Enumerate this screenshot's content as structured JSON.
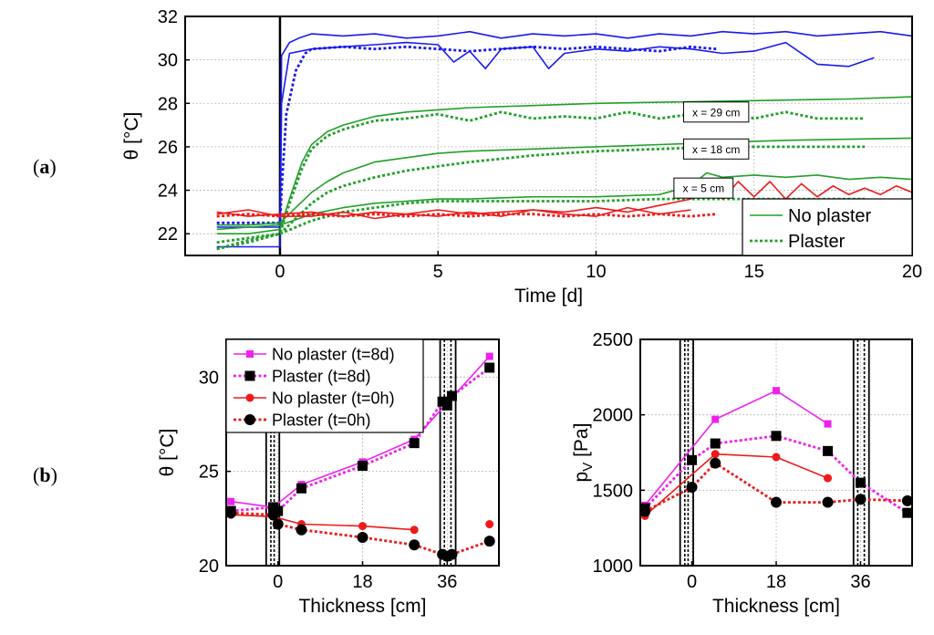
{
  "panel_labels": {
    "a": "a",
    "b": "b"
  },
  "chart_data": [
    {
      "type": "line",
      "id": "top",
      "xlabel": "Time [d]",
      "ylabel": "θ [°C]",
      "xlim": [
        -3,
        20
      ],
      "ylim": [
        21,
        32
      ],
      "xticks": [
        0,
        5,
        10,
        15,
        20
      ],
      "yticks": [
        22,
        24,
        26,
        28,
        30,
        32
      ],
      "grid": true,
      "legend": {
        "placement": "bottom-right",
        "entries": [
          {
            "label": "No plaster",
            "style": "solid",
            "color": "#22a02a"
          },
          {
            "label": "Plaster",
            "style": "dotted",
            "color": "#22a02a"
          }
        ]
      },
      "vline_x": 0,
      "annotations": [
        {
          "text": "x = 29 cm",
          "x": 13.8,
          "y": 27.6
        },
        {
          "text": "x = 18 cm",
          "x": 13.8,
          "y": 25.9
        },
        {
          "text": "x = 5 cm",
          "x": 13.4,
          "y": 24.1
        }
      ],
      "series": [
        {
          "color": "#1a1aee",
          "style": "solid",
          "x": [
            -2,
            -1,
            0,
            0.05,
            0.3,
            0.6,
            1,
            2,
            3,
            4,
            5,
            6,
            7,
            8,
            9,
            10,
            11,
            12,
            13,
            14,
            15,
            16,
            17,
            18,
            19,
            20
          ],
          "y": [
            22.3,
            22.3,
            22.3,
            30.2,
            30.8,
            31.0,
            31.2,
            31.1,
            31.2,
            31.0,
            31.1,
            31.3,
            31.0,
            31.2,
            31.1,
            31.2,
            31.0,
            31.2,
            31.1,
            31.3,
            31.2,
            31.3,
            31.1,
            31.2,
            31.3,
            31.1
          ]
        },
        {
          "color": "#1a1aee",
          "style": "dotted",
          "x": [
            -2,
            -1,
            0,
            0.05,
            0.2,
            0.5,
            0.8,
            1,
            2,
            3,
            4,
            5,
            6,
            7,
            8,
            9,
            10,
            11,
            12,
            13,
            13.8
          ],
          "y": [
            22.5,
            22.5,
            22.5,
            24,
            27.5,
            29.5,
            30.3,
            30.5,
            30.6,
            30.5,
            30.6,
            30.5,
            30.4,
            30.5,
            30.6,
            30.5,
            30.6,
            30.5,
            30.4,
            30.6,
            30.5
          ]
        },
        {
          "color": "#1a1aee",
          "style": "solid",
          "x": [
            -2,
            -1,
            0,
            0.05,
            0.3,
            1,
            2,
            3,
            4,
            5,
            5.5,
            6,
            6.5,
            7,
            8,
            8.5,
            9,
            10,
            11,
            12,
            13,
            14,
            15,
            16,
            17,
            18,
            18.8
          ],
          "y": [
            21.4,
            21.4,
            21.4,
            28,
            30.3,
            30.5,
            30.6,
            30.7,
            30.8,
            30.7,
            29.9,
            30.4,
            29.6,
            30.5,
            30.6,
            29.6,
            30.3,
            30.5,
            30.4,
            30.6,
            30.5,
            30.3,
            30.4,
            30.8,
            29.8,
            29.7,
            30.1
          ]
        },
        {
          "color": "#22a02a",
          "style": "solid",
          "x": [
            -2,
            -1,
            0,
            0.3,
            0.7,
            1,
            1.5,
            2,
            3,
            4,
            5,
            6,
            8,
            10,
            12,
            14,
            16,
            18,
            20
          ],
          "y": [
            22.0,
            22.0,
            22.2,
            23.6,
            25.3,
            26.1,
            26.7,
            27.0,
            27.4,
            27.6,
            27.7,
            27.8,
            27.9,
            28.0,
            28.05,
            28.1,
            28.15,
            28.2,
            28.3
          ]
        },
        {
          "color": "#22a02a",
          "style": "dotted",
          "x": [
            -2,
            -1,
            0,
            0.3,
            0.7,
            1,
            1.5,
            2,
            3,
            4,
            5,
            6,
            7,
            8,
            9,
            10,
            11,
            12,
            13,
            14,
            15,
            16,
            17,
            18.5
          ],
          "y": [
            21.6,
            21.8,
            22.0,
            23.4,
            25.0,
            25.9,
            26.5,
            26.8,
            27.2,
            27.3,
            27.5,
            27.2,
            27.6,
            27.3,
            27.4,
            27.3,
            27.6,
            27.3,
            27.5,
            27.7,
            27.3,
            27.6,
            27.3,
            27.3
          ]
        },
        {
          "color": "#22a02a",
          "style": "solid",
          "x": [
            -2,
            -1,
            0,
            0.5,
            1,
            1.5,
            2,
            3,
            4,
            5,
            6,
            8,
            10,
            12,
            14,
            16,
            18,
            20
          ],
          "y": [
            22.4,
            22.4,
            22.5,
            23.2,
            23.9,
            24.4,
            24.8,
            25.3,
            25.5,
            25.7,
            25.8,
            25.9,
            26.0,
            26.1,
            26.2,
            26.3,
            26.35,
            26.4
          ]
        },
        {
          "color": "#22a02a",
          "style": "dotted",
          "x": [
            -2,
            -1,
            0,
            0.5,
            1,
            1.5,
            2,
            3,
            4,
            5,
            6,
            8,
            10,
            12,
            14,
            16,
            18.5
          ],
          "y": [
            21.3,
            21.7,
            22.0,
            22.7,
            23.4,
            23.9,
            24.2,
            24.6,
            24.9,
            25.1,
            25.3,
            25.6,
            25.8,
            25.9,
            26.0,
            26.0,
            26.0
          ]
        },
        {
          "color": "#22a02a",
          "style": "solid",
          "x": [
            -2,
            -1,
            0,
            1,
            2,
            3,
            4,
            5,
            6,
            8,
            10,
            12,
            13,
            13.5,
            14,
            15,
            16,
            17,
            18,
            19,
            20
          ],
          "y": [
            22.2,
            22.3,
            22.4,
            22.9,
            23.2,
            23.4,
            23.5,
            23.6,
            23.6,
            23.7,
            23.7,
            23.8,
            24.2,
            24.8,
            24.6,
            24.7,
            24.6,
            24.7,
            24.5,
            24.6,
            24.5
          ]
        },
        {
          "color": "#22a02a",
          "style": "dotted",
          "x": [
            -2,
            -1,
            0,
            1,
            2,
            3,
            4,
            5,
            6,
            8,
            10,
            12,
            14,
            16,
            18.5
          ],
          "y": [
            21.3,
            21.6,
            22.0,
            22.6,
            23.0,
            23.2,
            23.4,
            23.5,
            23.5,
            23.5,
            23.5,
            23.6,
            23.6,
            23.6,
            23.6
          ]
        },
        {
          "color": "#ee1a1a",
          "style": "solid",
          "x": [
            -2,
            -1,
            0,
            1,
            2,
            3,
            4,
            5,
            6,
            7,
            8,
            9,
            10,
            11,
            12,
            13,
            13.5,
            14,
            14.5,
            15,
            15.5,
            16,
            16.5,
            17,
            17.5,
            18,
            18.5,
            19,
            19.5,
            20
          ],
          "y": [
            23.0,
            22.8,
            22.9,
            23.0,
            22.8,
            23.0,
            22.9,
            23.1,
            22.9,
            23.0,
            23.1,
            23.0,
            23.2,
            23.0,
            23.3,
            23.6,
            24.3,
            23.6,
            24.4,
            23.7,
            24.4,
            23.6,
            24.3,
            23.7,
            24.2,
            23.8,
            24.1,
            23.8,
            24.2,
            23.9
          ]
        },
        {
          "color": "#ee1a1a",
          "style": "dotted",
          "x": [
            -2,
            -1,
            0,
            1,
            2,
            3,
            4,
            5,
            6,
            7,
            8,
            9,
            10,
            11,
            12,
            13,
            13.8
          ],
          "y": [
            22.8,
            22.9,
            22.8,
            22.9,
            22.8,
            22.9,
            22.8,
            22.9,
            22.8,
            22.9,
            22.9,
            22.8,
            22.9,
            22.8,
            22.9,
            22.8,
            22.9
          ]
        },
        {
          "color": "#ee1a1a",
          "style": "solid",
          "x": [
            -2,
            -1,
            0,
            1,
            2,
            3,
            4,
            5,
            6,
            7,
            8,
            9,
            10,
            11,
            12,
            13
          ],
          "y": [
            22.9,
            23.1,
            22.8,
            22.8,
            23.0,
            22.7,
            22.9,
            22.8,
            23.0,
            22.8,
            23.1,
            22.9,
            22.8,
            23.2,
            22.9,
            23.1
          ]
        }
      ]
    },
    {
      "type": "line",
      "id": "bottom-left",
      "xlabel": "Thickness [cm]",
      "ylabel": "θ [°C]",
      "xlim": [
        -11,
        47
      ],
      "ylim": [
        20,
        32
      ],
      "xticks": [
        0,
        18,
        36
      ],
      "yticks": [
        20,
        25,
        30
      ],
      "grid": true,
      "wall_lines_x": [
        -2.5,
        -1.5,
        -0.8,
        0.3,
        34.5,
        35.4,
        36.8,
        37.8
      ],
      "legend": {
        "placement": "top-left",
        "entries": [
          {
            "label": "No plaster (t=8d)",
            "color": "#ee22ee",
            "style": "solid",
            "marker": "square"
          },
          {
            "label": "Plaster (t=8d)",
            "color": "#ee22ee",
            "style": "dotted",
            "marker": "square",
            "marker_color": "#000000"
          },
          {
            "label": "No plaster (t=0h)",
            "color": "#ee1a1a",
            "style": "solid",
            "marker": "circle"
          },
          {
            "label": "Plaster (t=0h)",
            "color": "#ee1a1a",
            "style": "dotted",
            "marker": "circle",
            "marker_color": "#000000"
          }
        ]
      },
      "series": [
        {
          "name": "No plaster (t=8d)",
          "color": "#ee22ee",
          "style": "solid",
          "marker": "square",
          "marker_color": "#ee22ee",
          "x": [
            -10,
            -1,
            5,
            18,
            29,
            45
          ],
          "y": [
            23.4,
            23.1,
            24.3,
            25.5,
            26.7,
            31.1
          ]
        },
        {
          "name": "Plaster (t=8d)",
          "color": "#ee22ee",
          "style": "dotted",
          "marker": "square",
          "marker_color": "#000000",
          "x": [
            -10,
            -1,
            0,
            5,
            18,
            29,
            35,
            36,
            37,
            45
          ],
          "y": [
            22.9,
            23.1,
            22.9,
            24.1,
            25.3,
            26.5,
            28.7,
            28.5,
            29.0,
            30.5
          ]
        },
        {
          "name": "No plaster (t=0h)",
          "color": "#ee1a1a",
          "style": "solid",
          "marker": "circle",
          "marker_color": "#ee1a1a",
          "x": [
            -10,
            -1,
            5,
            18,
            29
          ],
          "y": [
            22.7,
            22.6,
            22.2,
            22.1,
            21.9
          ]
        },
        {
          "name": "No plaster (t=0h)",
          "color": "#ee1a1a",
          "style": "solid",
          "marker": "circle",
          "marker_color": "#ee1a1a",
          "x": [
            45
          ],
          "y": [
            22.2
          ]
        },
        {
          "name": "Plaster (t=0h)",
          "color": "#ee1a1a",
          "style": "dotted",
          "marker": "circle",
          "marker_color": "#000000",
          "x": [
            -10,
            -1,
            0,
            5,
            18,
            29,
            35,
            36,
            37,
            45
          ],
          "y": [
            22.8,
            22.7,
            22.2,
            21.9,
            21.5,
            21.1,
            20.6,
            20.5,
            20.6,
            21.3
          ]
        }
      ]
    },
    {
      "type": "line",
      "id": "bottom-right",
      "xlabel": "Thickness [cm]",
      "ylabel": "p_V [Pa]",
      "xlim": [
        -11,
        47
      ],
      "ylim": [
        1000,
        2500
      ],
      "xticks": [
        0,
        18,
        36
      ],
      "yticks": [
        1000,
        1500,
        2000,
        2500
      ],
      "grid": true,
      "wall_lines_x": [
        -2.5,
        -1.5,
        -0.8,
        0.3,
        34.5,
        35.4,
        36.8,
        37.8
      ],
      "series": [
        {
          "name": "No plaster (t=8d)",
          "color": "#ee22ee",
          "style": "solid",
          "marker": "square",
          "marker_color": "#ee22ee",
          "x": [
            -10,
            5,
            18,
            29
          ],
          "y": [
            1400,
            1970,
            2160,
            1940
          ]
        },
        {
          "name": "Plaster (t=8d)",
          "color": "#ee22ee",
          "style": "dotted",
          "marker": "square",
          "marker_color": "#000000",
          "x": [
            -10,
            0,
            5,
            18,
            29,
            36,
            46
          ],
          "y": [
            1380,
            1700,
            1810,
            1860,
            1760,
            1550,
            1350
          ]
        },
        {
          "name": "No plaster (t=0h)",
          "color": "#ee1a1a",
          "style": "solid",
          "marker": "circle",
          "marker_color": "#ee1a1a",
          "x": [
            -10,
            5,
            18,
            29
          ],
          "y": [
            1330,
            1740,
            1720,
            1580
          ]
        },
        {
          "name": "Plaster (t=0h)",
          "color": "#ee1a1a",
          "style": "dotted",
          "marker": "circle",
          "marker_color": "#000000",
          "x": [
            -10,
            0,
            5,
            18,
            29,
            36,
            46
          ],
          "y": [
            1360,
            1520,
            1680,
            1420,
            1420,
            1440,
            1430
          ]
        }
      ]
    }
  ]
}
